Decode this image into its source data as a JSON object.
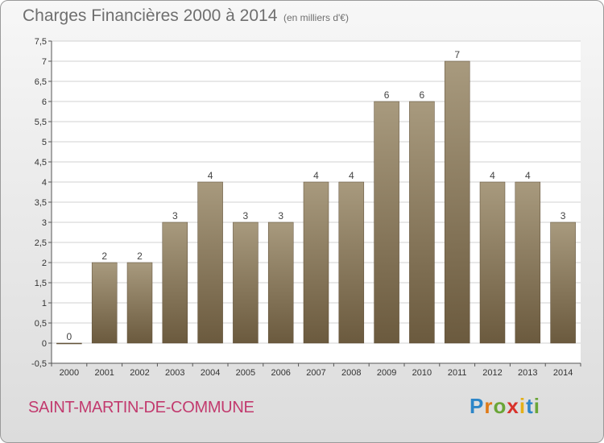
{
  "header": {
    "title": "Charges Financières 2000 à 2014",
    "unit": "(en milliers d'€)"
  },
  "footer": {
    "commune": "SAINT-MARTIN-DE-COMMUNE",
    "logo_letters": [
      "P",
      "r",
      "o",
      "x",
      "i",
      "t",
      "i"
    ]
  },
  "chart_data": {
    "type": "bar",
    "categories": [
      "2000",
      "2001",
      "2002",
      "2003",
      "2004",
      "2005",
      "2006",
      "2007",
      "2008",
      "2009",
      "2010",
      "2011",
      "2012",
      "2013",
      "2014"
    ],
    "values": [
      0,
      2,
      2,
      3,
      4,
      3,
      3,
      4,
      4,
      6,
      6,
      7,
      4,
      4,
      3
    ],
    "data_labels": [
      "0",
      "2",
      "2",
      "3",
      "4",
      "3",
      "3",
      "4",
      "4",
      "6",
      "6",
      "7",
      "4",
      "4",
      "3"
    ],
    "title": "Charges Financières 2000 à 2014",
    "ylabel": "",
    "xlabel": "",
    "ylim": [
      -0.5,
      7.5
    ],
    "yticks": [
      "-0,5",
      "0",
      "0,5",
      "1",
      "1,5",
      "2",
      "2,5",
      "3",
      "3,5",
      "4",
      "4,5",
      "5",
      "5,5",
      "6",
      "6,5",
      "7",
      "7,5"
    ],
    "ytick_values": [
      -0.5,
      0,
      0.5,
      1,
      1.5,
      2,
      2.5,
      3,
      3.5,
      4,
      4.5,
      5,
      5.5,
      6,
      6.5,
      7,
      7.5
    ],
    "grid": true,
    "colors": {
      "bar_top": "#a89a7e",
      "bar_bottom": "#6b5a3e",
      "grid": "#d2d2d2",
      "plot_bg": "#ffffff"
    }
  }
}
